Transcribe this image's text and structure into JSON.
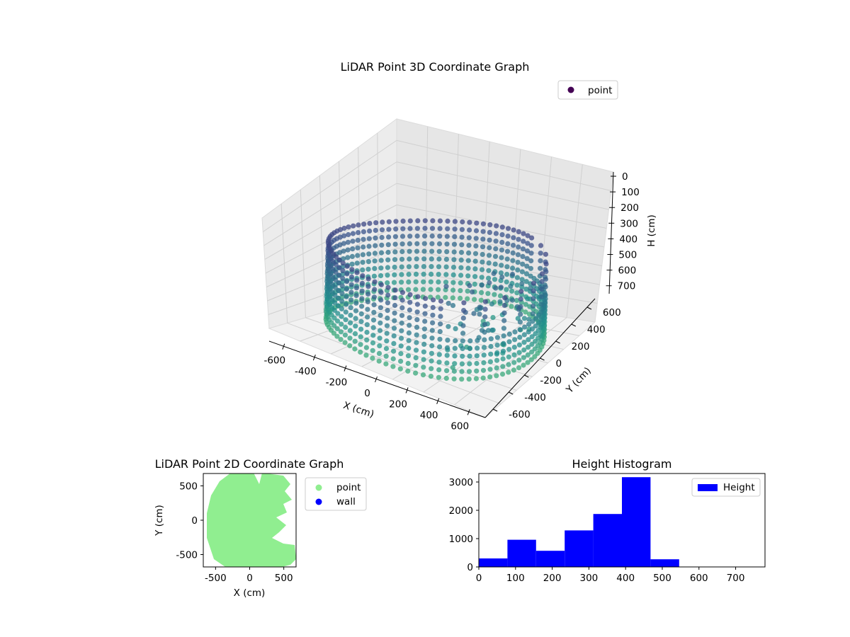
{
  "chart_data": [
    {
      "type": "scatter3d",
      "title": "LiDAR Point 3D Coordinate Graph",
      "xlabel": "X (cm)",
      "ylabel": "Y (cm)",
      "zlabel": "H (cm)",
      "xlim": [
        -700,
        700
      ],
      "ylim": [
        -700,
        700
      ],
      "zlim": [
        0,
        760
      ],
      "z_inverted": true,
      "xticks": [
        -600,
        -400,
        -200,
        0,
        200,
        400,
        600
      ],
      "yticks": [
        -600,
        -400,
        -200,
        0,
        200,
        400,
        600
      ],
      "zticks": [
        0,
        100,
        200,
        300,
        400,
        500,
        600,
        700
      ],
      "colormap": "viridis",
      "legend": {
        "entries": [
          {
            "name": "point",
            "color": "#440154"
          }
        ],
        "placement": "upper-right"
      },
      "series": [
        {
          "name": "point",
          "description_shape": "ring of points roughly radius 650 cm, heights mostly 300-500 cm, irregular gap on +X side"
        }
      ]
    },
    {
      "type": "scatter",
      "title": "LiDAR Point 2D Coordinate Graph",
      "xlabel": "X (cm)",
      "ylabel": "Y (cm)",
      "xlim": [
        -680,
        680
      ],
      "ylim": [
        -680,
        680
      ],
      "xticks": [
        -500,
        0,
        500
      ],
      "yticks": [
        500,
        0,
        -500
      ],
      "grid": false,
      "legend": {
        "placement": "outside-right",
        "entries": [
          {
            "name": "point",
            "color": "#90ee90"
          },
          {
            "name": "wall",
            "color": "#0000ff"
          }
        ]
      },
      "series": [
        {
          "name": "point",
          "color": "#90ee90"
        },
        {
          "name": "wall",
          "color": "#0000ff"
        }
      ]
    },
    {
      "type": "histogram",
      "title": "Height Histogram",
      "xlim": [
        0,
        780
      ],
      "ylim": [
        0,
        3300
      ],
      "xticks": [
        0,
        100,
        200,
        300,
        400,
        500,
        600,
        700
      ],
      "yticks": [
        0,
        1000,
        2000,
        3000
      ],
      "legend": {
        "placement": "upper-right",
        "entries": [
          {
            "name": "Height",
            "color": "#0000ff"
          }
        ]
      },
      "bins": [
        {
          "x0": 0,
          "x1": 78,
          "count": 300
        },
        {
          "x0": 78,
          "x1": 156,
          "count": 960
        },
        {
          "x0": 156,
          "x1": 234,
          "count": 570
        },
        {
          "x0": 234,
          "x1": 312,
          "count": 1290
        },
        {
          "x0": 312,
          "x1": 390,
          "count": 1870
        },
        {
          "x0": 390,
          "x1": 468,
          "count": 3170
        },
        {
          "x0": 468,
          "x1": 546,
          "count": 270
        },
        {
          "x0": 546,
          "x1": 624,
          "count": 0
        },
        {
          "x0": 624,
          "x1": 702,
          "count": 0
        },
        {
          "x0": 702,
          "x1": 780,
          "count": 0
        }
      ],
      "color": "#0000ff"
    }
  ]
}
